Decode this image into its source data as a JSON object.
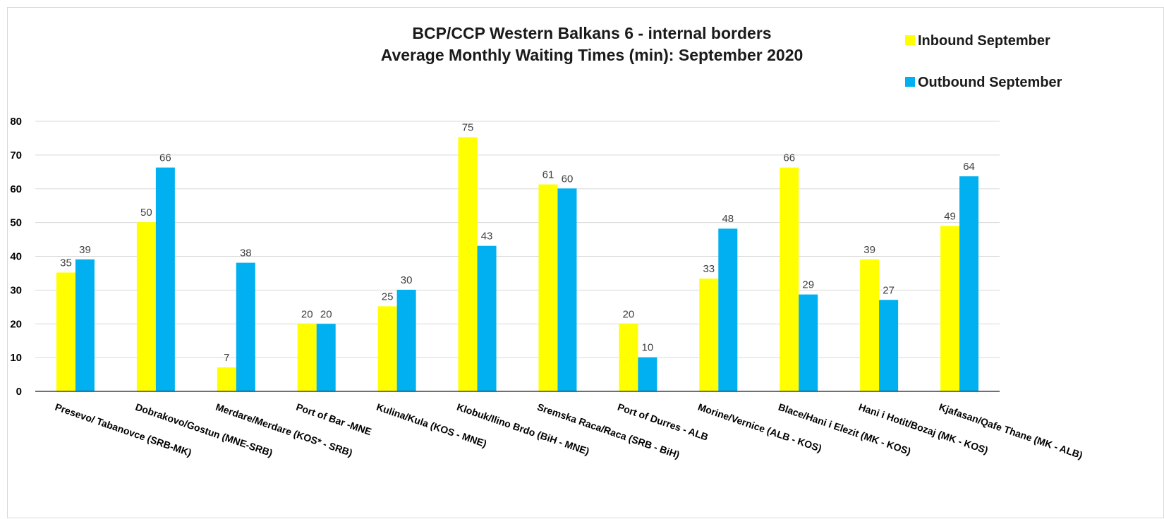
{
  "chart_data": {
    "type": "bar",
    "title": [
      "BCP/CCP Western Balkans 6 - internal borders",
      "Average Monthly Waiting Times (min): September 2020"
    ],
    "xlabel": "",
    "ylabel": "",
    "ylim": [
      0,
      80
    ],
    "yticks": [
      0,
      10,
      20,
      30,
      40,
      50,
      60,
      70,
      80
    ],
    "grid": true,
    "legend_position": "top-right",
    "categories": [
      "Presevo/ Tabanovce (SRB-MK)",
      "Dobrakovo/Gostun (MNE-SRB)",
      "Merdare/Merdare (KOS* - SRB)",
      "Port of Bar -MNE",
      "Kulina/Kula (KOS - MNE)",
      "Klobuk/Ilino Brdo (BiH - MNE)",
      "Sremska Raca/Raca (SRB - BiH)",
      "Port of Durres - ALB",
      "Morine/Vernice (ALB - KOS)",
      "Blace/Hani i Elezit (MK - KOS)",
      "Hani i Hotit/Bozaj (MK - KOS)",
      "Kjafasan/Qafe Thane (MK - ALB)"
    ],
    "series": [
      {
        "name": "Inbound September",
        "color": "#ffff00",
        "values": [
          35.2,
          50.1,
          7.1,
          20.0,
          25.2,
          75.3,
          61.3,
          20.0,
          33.4,
          66.3,
          39.1,
          49.0
        ],
        "labels": [
          "35",
          "50",
          "7",
          "20",
          "25",
          "75",
          "61",
          "20",
          "33",
          "66",
          "39",
          "49"
        ]
      },
      {
        "name": "Outbound September",
        "color": "#00b0f0",
        "values": [
          39.1,
          66.3,
          38.1,
          20.0,
          30.1,
          43.1,
          60.1,
          10.1,
          48.2,
          28.7,
          27.1,
          63.7
        ],
        "labels": [
          "39",
          "66",
          "38",
          "20",
          "30",
          "43",
          "60",
          "10",
          "48",
          "29",
          "27",
          "64"
        ]
      }
    ]
  }
}
